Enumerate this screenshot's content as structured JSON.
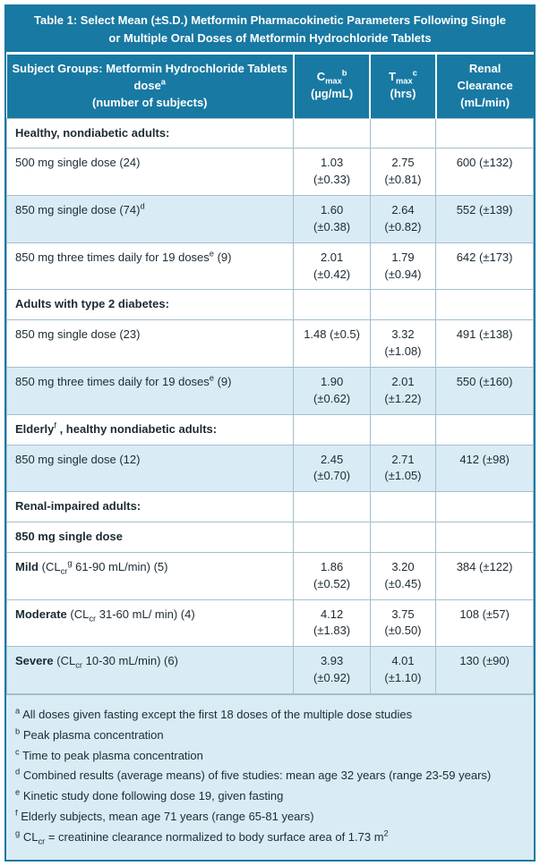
{
  "colors": {
    "accent_teal": "#1879a3",
    "shade_blue": "#d9ecf6",
    "grid_line": "#a3bfcb",
    "text": "#1c2b33",
    "header_text": "#ffffff"
  },
  "title": {
    "text": "Table 1: Select Mean (±S.D.) Metformin Pharmacokinetic Parameters Following Single or Multiple Oral Doses of Metformin Hydrochloride Tablets"
  },
  "table": {
    "header": [
      [
        {
          "t": "Subject Groups: Metformin Hydrochloride Tablets"
        },
        {
          "br": true
        },
        {
          "t": "dose"
        },
        {
          "sup": "a"
        },
        {
          "br": true
        },
        {
          "t": "(number of subjects)"
        }
      ],
      [
        {
          "t": "C"
        },
        {
          "sub": "max"
        },
        {
          "sup": "b"
        },
        {
          "br": true
        },
        {
          "t": "(µg/mL)"
        }
      ],
      [
        {
          "t": "T"
        },
        {
          "sub": "max"
        },
        {
          "sup": "c"
        },
        {
          "br": true
        },
        {
          "t": "(hrs)"
        }
      ],
      [
        {
          "t": "Renal"
        },
        {
          "br": true
        },
        {
          "t": "Clearance"
        },
        {
          "br": true
        },
        {
          "t": "(mL/min)"
        }
      ]
    ],
    "rows": [
      {
        "type": "section",
        "shade": false,
        "cells": [
          [
            {
              "b": "Healthy, nondiabetic adults:"
            }
          ],
          [],
          [],
          []
        ]
      },
      {
        "type": "data",
        "shade": false,
        "cells": [
          [
            {
              "t": "500 mg single dose (24)"
            }
          ],
          [
            {
              "t": "1.03"
            },
            {
              "br": true
            },
            {
              "t": "(±0.33)"
            }
          ],
          [
            {
              "t": "2.75"
            },
            {
              "br": true
            },
            {
              "t": "(±0.81)"
            }
          ],
          [
            {
              "t": "600 (±132)"
            }
          ]
        ]
      },
      {
        "type": "data",
        "shade": true,
        "cells": [
          [
            {
              "t": "850 mg single dose (74)"
            },
            {
              "sup": "d"
            }
          ],
          [
            {
              "t": "1.60"
            },
            {
              "br": true
            },
            {
              "t": "(±0.38)"
            }
          ],
          [
            {
              "t": "2.64"
            },
            {
              "br": true
            },
            {
              "t": "(±0.82)"
            }
          ],
          [
            {
              "t": "552 (±139)"
            }
          ]
        ]
      },
      {
        "type": "data",
        "shade": false,
        "cells": [
          [
            {
              "t": "850 mg three times daily for 19 doses"
            },
            {
              "sup": "e"
            },
            {
              "t": " (9)"
            }
          ],
          [
            {
              "t": "2.01"
            },
            {
              "br": true
            },
            {
              "t": "(±0.42)"
            }
          ],
          [
            {
              "t": "1.79"
            },
            {
              "br": true
            },
            {
              "t": "(±0.94)"
            }
          ],
          [
            {
              "t": "642 (±173)"
            }
          ]
        ]
      },
      {
        "type": "section",
        "shade": false,
        "cells": [
          [
            {
              "b": "Adults with type 2 diabetes:"
            }
          ],
          [],
          [],
          []
        ]
      },
      {
        "type": "data",
        "shade": false,
        "cells": [
          [
            {
              "t": "850 mg single dose (23)"
            }
          ],
          [
            {
              "t": "1.48 (±0.5)"
            }
          ],
          [
            {
              "t": "3.32"
            },
            {
              "br": true
            },
            {
              "t": "(±1.08)"
            }
          ],
          [
            {
              "t": "491 (±138)"
            }
          ]
        ]
      },
      {
        "type": "data",
        "shade": true,
        "cells": [
          [
            {
              "t": "850 mg three times daily for 19 doses"
            },
            {
              "sup": "e"
            },
            {
              "t": " (9)"
            }
          ],
          [
            {
              "t": "1.90"
            },
            {
              "br": true
            },
            {
              "t": "(±0.62)"
            }
          ],
          [
            {
              "t": "2.01"
            },
            {
              "br": true
            },
            {
              "t": "(±1.22)"
            }
          ],
          [
            {
              "t": "550 (±160)"
            }
          ]
        ]
      },
      {
        "type": "section",
        "shade": false,
        "cells": [
          [
            {
              "b": "Elderly"
            },
            {
              "sup": "f"
            },
            {
              "b": " , healthy nondiabetic adults:"
            }
          ],
          [],
          [],
          []
        ]
      },
      {
        "type": "data",
        "shade": true,
        "cells": [
          [
            {
              "t": "850 mg single dose (12)"
            }
          ],
          [
            {
              "t": "2.45"
            },
            {
              "br": true
            },
            {
              "t": "(±0.70)"
            }
          ],
          [
            {
              "t": "2.71"
            },
            {
              "br": true
            },
            {
              "t": "(±1.05)"
            }
          ],
          [
            {
              "t": "412 (±98)"
            }
          ]
        ]
      },
      {
        "type": "section",
        "shade": false,
        "cells": [
          [
            {
              "b": "Renal-impaired adults:"
            }
          ],
          [],
          [],
          []
        ]
      },
      {
        "type": "section",
        "shade": false,
        "cells": [
          [
            {
              "b": "850 mg single dose"
            }
          ],
          [],
          [],
          []
        ]
      },
      {
        "type": "data",
        "shade": false,
        "cells": [
          [
            {
              "b": "Mild"
            },
            {
              "t": " (CL"
            },
            {
              "sub": "cr"
            },
            {
              "sup": "g"
            },
            {
              "t": " 61-90 mL/min) (5)"
            }
          ],
          [
            {
              "t": "1.86"
            },
            {
              "br": true
            },
            {
              "t": "(±0.52)"
            }
          ],
          [
            {
              "t": "3.20"
            },
            {
              "br": true
            },
            {
              "t": "(±0.45)"
            }
          ],
          [
            {
              "t": "384 (±122)"
            }
          ]
        ]
      },
      {
        "type": "data",
        "shade": false,
        "cells": [
          [
            {
              "b": "Moderate"
            },
            {
              "t": " (CL"
            },
            {
              "sub": "cr"
            },
            {
              "t": " 31-60 mL/ min) (4)"
            }
          ],
          [
            {
              "t": "4.12"
            },
            {
              "br": true
            },
            {
              "t": "(±1.83)"
            }
          ],
          [
            {
              "t": "3.75"
            },
            {
              "br": true
            },
            {
              "t": "(±0.50)"
            }
          ],
          [
            {
              "t": "108 (±57)"
            }
          ]
        ]
      },
      {
        "type": "data",
        "shade": true,
        "cells": [
          [
            {
              "b": "Severe"
            },
            {
              "t": " (CL"
            },
            {
              "sub": "cr"
            },
            {
              "t": " 10-30 mL/min) (6)"
            }
          ],
          [
            {
              "t": "3.93"
            },
            {
              "br": true
            },
            {
              "t": "(±0.92)"
            }
          ],
          [
            {
              "t": "4.01"
            },
            {
              "br": true
            },
            {
              "t": "(±1.10)"
            }
          ],
          [
            {
              "t": "130 (±90)"
            }
          ]
        ]
      }
    ]
  },
  "footnotes": [
    [
      {
        "sup": "a"
      },
      {
        "t": " All doses given fasting except the first 18 doses of the multiple dose studies"
      }
    ],
    [
      {
        "sup": "b"
      },
      {
        "t": " Peak plasma concentration"
      }
    ],
    [
      {
        "sup": "c"
      },
      {
        "t": " Time to peak plasma concentration"
      }
    ],
    [
      {
        "sup": "d"
      },
      {
        "t": " Combined results (average means) of five studies: mean age 32 years (range 23-59 years)"
      }
    ],
    [
      {
        "sup": "e"
      },
      {
        "t": " Kinetic study done following dose 19, given fasting"
      }
    ],
    [
      {
        "sup": "f"
      },
      {
        "t": " Elderly subjects, mean age 71 years (range 65-81 years)"
      }
    ],
    [
      {
        "sup": "g"
      },
      {
        "t": " CL"
      },
      {
        "sub": "cr"
      },
      {
        "t": " = creatinine clearance normalized to body surface area of 1.73 m"
      },
      {
        "sup": "2"
      }
    ]
  ]
}
